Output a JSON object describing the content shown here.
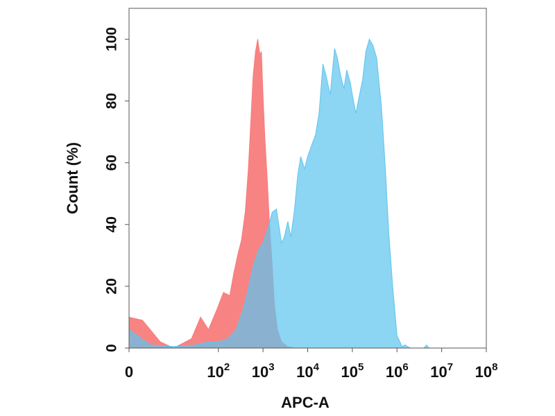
{
  "chart_data": {
    "type": "area",
    "xlabel": "APC-A",
    "ylabel": "Count  (%)",
    "x_scale": "log",
    "xlim": [
      1,
      100000000
    ],
    "ylim": [
      0,
      110
    ],
    "grid": false,
    "legend": "none",
    "y_ticks": [
      0,
      20,
      40,
      60,
      80,
      100
    ],
    "x_ticks": [
      {
        "value": 1,
        "base": "0",
        "exp": ""
      },
      {
        "value": 100,
        "base": "10",
        "exp": "2"
      },
      {
        "value": 1000,
        "base": "10",
        "exp": "3"
      },
      {
        "value": 10000,
        "base": "10",
        "exp": "4"
      },
      {
        "value": 100000,
        "base": "10",
        "exp": "5"
      },
      {
        "value": 1000000,
        "base": "10",
        "exp": "6"
      },
      {
        "value": 10000000,
        "base": "10",
        "exp": "7"
      },
      {
        "value": 100000000,
        "base": "10",
        "exp": "8"
      }
    ],
    "series": [
      {
        "color": "#F87C7C",
        "points": [
          [
            1,
            10
          ],
          [
            2,
            9
          ],
          [
            5,
            2
          ],
          [
            10,
            0
          ],
          [
            25,
            3
          ],
          [
            40,
            10
          ],
          [
            60,
            6
          ],
          [
            90,
            12
          ],
          [
            130,
            18
          ],
          [
            180,
            17
          ],
          [
            220,
            24
          ],
          [
            270,
            30
          ],
          [
            330,
            35
          ],
          [
            400,
            44
          ],
          [
            470,
            58
          ],
          [
            540,
            75
          ],
          [
            600,
            88
          ],
          [
            680,
            96
          ],
          [
            760,
            100
          ],
          [
            850,
            95
          ],
          [
            920,
            96
          ],
          [
            1000,
            82
          ],
          [
            1100,
            68
          ],
          [
            1250,
            54
          ],
          [
            1400,
            40
          ],
          [
            1600,
            27
          ],
          [
            1800,
            14
          ],
          [
            2100,
            6
          ],
          [
            2600,
            2
          ],
          [
            3500,
            0.5
          ],
          [
            5000,
            0
          ]
        ]
      },
      {
        "color": "#5FC5EE",
        "points": [
          [
            1,
            6
          ],
          [
            3,
            1
          ],
          [
            10,
            0.5
          ],
          [
            30,
            1
          ],
          [
            60,
            2
          ],
          [
            100,
            2
          ],
          [
            160,
            3
          ],
          [
            250,
            6
          ],
          [
            350,
            12
          ],
          [
            450,
            18
          ],
          [
            550,
            24
          ],
          [
            650,
            28
          ],
          [
            800,
            32
          ],
          [
            1000,
            34
          ],
          [
            1300,
            39
          ],
          [
            1600,
            44
          ],
          [
            2000,
            45
          ],
          [
            2600,
            34
          ],
          [
            3000,
            36
          ],
          [
            3600,
            41
          ],
          [
            4200,
            36
          ],
          [
            5000,
            44
          ],
          [
            6000,
            56
          ],
          [
            7000,
            62
          ],
          [
            8500,
            58
          ],
          [
            10000,
            62
          ],
          [
            12500,
            66
          ],
          [
            15000,
            69
          ],
          [
            18000,
            76
          ],
          [
            22000,
            92
          ],
          [
            26000,
            88
          ],
          [
            32000,
            82
          ],
          [
            40000,
            97
          ],
          [
            46000,
            94
          ],
          [
            55000,
            88
          ],
          [
            65000,
            84
          ],
          [
            75000,
            90
          ],
          [
            90000,
            86
          ],
          [
            100000,
            82
          ],
          [
            120000,
            76
          ],
          [
            140000,
            81
          ],
          [
            170000,
            87
          ],
          [
            200000,
            96
          ],
          [
            240000,
            100
          ],
          [
            290000,
            98
          ],
          [
            350000,
            94
          ],
          [
            450000,
            78
          ],
          [
            550000,
            58
          ],
          [
            650000,
            38
          ],
          [
            800000,
            20
          ],
          [
            1000000,
            4
          ],
          [
            1300000,
            0.5
          ],
          [
            1500000,
            1
          ],
          [
            2000000,
            0
          ],
          [
            4000000,
            0
          ],
          [
            4600000,
            1
          ],
          [
            5200000,
            0
          ],
          [
            100000000,
            0
          ]
        ]
      }
    ]
  }
}
